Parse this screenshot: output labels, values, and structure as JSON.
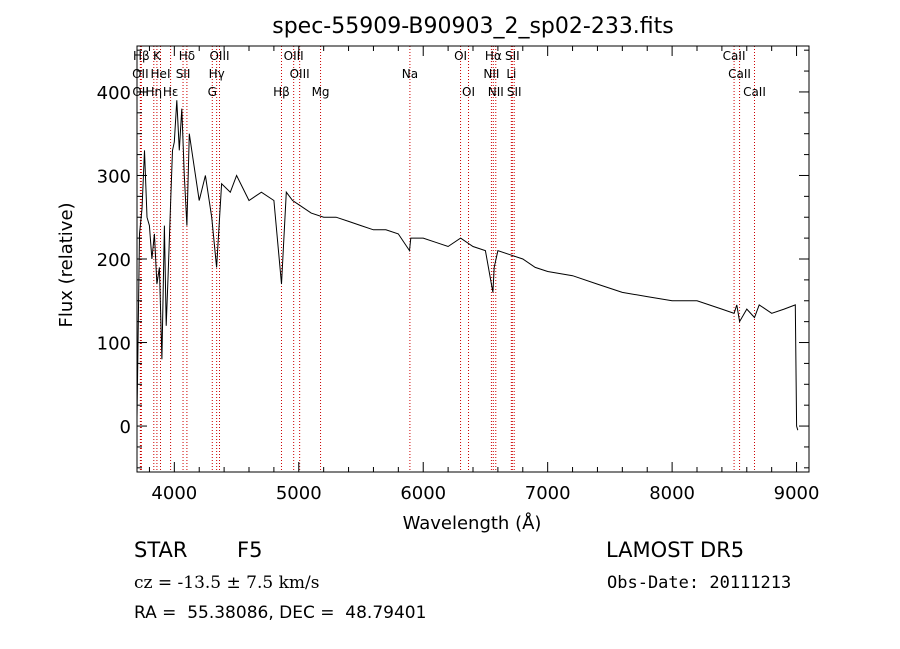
{
  "chart_data": {
    "type": "line",
    "title": "spec-55909-B90903_2_sp02-233.fits",
    "xlabel": "Wavelength (Å)",
    "ylabel": "Flux (relative)",
    "xlim": [
      3700,
      9100
    ],
    "ylim": [
      -55,
      455
    ],
    "xticks": [
      4000,
      5000,
      6000,
      7000,
      8000,
      9000
    ],
    "yticks": [
      0,
      100,
      200,
      300,
      400
    ],
    "grid": false,
    "series": [
      {
        "color": "#000000",
        "x": [
          3700,
          3720,
          3740,
          3760,
          3780,
          3800,
          3820,
          3840,
          3860,
          3880,
          3900,
          3920,
          3935,
          3950,
          3968,
          3985,
          4000,
          4020,
          4040,
          4060,
          4080,
          4101,
          4120,
          4150,
          4200,
          4250,
          4300,
          4340,
          4380,
          4450,
          4500,
          4600,
          4700,
          4800,
          4861,
          4900,
          4950,
          5000,
          5100,
          5200,
          5300,
          5400,
          5500,
          5600,
          5700,
          5800,
          5890,
          5900,
          6000,
          6100,
          6200,
          6300,
          6400,
          6500,
          6560,
          6570,
          6600,
          6700,
          6800,
          6900,
          7000,
          7200,
          7400,
          7600,
          7800,
          8000,
          8200,
          8400,
          8498,
          8520,
          8542,
          8600,
          8662,
          8700,
          8800,
          8900,
          8990,
          9000,
          9010
        ],
        "values": [
          10,
          230,
          260,
          330,
          250,
          240,
          200,
          230,
          170,
          190,
          80,
          240,
          120,
          180,
          260,
          330,
          340,
          390,
          330,
          380,
          300,
          240,
          350,
          320,
          270,
          300,
          250,
          190,
          290,
          280,
          300,
          270,
          280,
          270,
          170,
          280,
          270,
          265,
          255,
          250,
          250,
          245,
          240,
          235,
          235,
          230,
          210,
          225,
          225,
          220,
          215,
          225,
          215,
          210,
          160,
          190,
          210,
          205,
          200,
          190,
          185,
          180,
          170,
          160,
          155,
          150,
          150,
          140,
          135,
          145,
          125,
          140,
          130,
          145,
          135,
          140,
          145,
          0,
          -5
        ]
      }
    ],
    "lines": [
      {
        "label": "Hβ",
        "row": 0,
        "x": 3735
      },
      {
        "label": "K",
        "row": 0,
        "x": 3860
      },
      {
        "label": "Hδ",
        "row": 0,
        "x": 4101
      },
      {
        "label": "OIII",
        "row": 0,
        "x": 4363
      },
      {
        "label": "OIII",
        "row": 0,
        "x": 4959
      },
      {
        "label": "OI",
        "row": 0,
        "x": 6300
      },
      {
        "label": "Hα",
        "row": 0,
        "x": 6563
      },
      {
        "label": "SII",
        "row": 0,
        "x": 6716
      },
      {
        "label": "CaII",
        "row": 0,
        "x": 8498
      },
      {
        "label": "OII",
        "row": 1,
        "x": 3727
      },
      {
        "label": "HeI",
        "row": 1,
        "x": 3889
      },
      {
        "label": "SII",
        "row": 1,
        "x": 4070
      },
      {
        "label": "Hγ",
        "row": 1,
        "x": 4340
      },
      {
        "label": "OIII",
        "row": 1,
        "x": 5007
      },
      {
        "label": "Na",
        "row": 1,
        "x": 5893
      },
      {
        "label": "NII",
        "row": 1,
        "x": 6548
      },
      {
        "label": "Li",
        "row": 1,
        "x": 6708
      },
      {
        "label": "CaII",
        "row": 1,
        "x": 8542
      },
      {
        "label": "OII",
        "row": 2,
        "x": 3729
      },
      {
        "label": "Hη",
        "row": 2,
        "x": 3835
      },
      {
        "label": "Hε",
        "row": 2,
        "x": 3970
      },
      {
        "label": "G",
        "row": 2,
        "x": 4305
      },
      {
        "label": "Hβ",
        "row": 2,
        "x": 4861
      },
      {
        "label": "Mg",
        "row": 2,
        "x": 5175
      },
      {
        "label": "OI",
        "row": 2,
        "x": 6364
      },
      {
        "label": "NII",
        "row": 2,
        "x": 6583
      },
      {
        "label": "SII",
        "row": 2,
        "x": 6731
      },
      {
        "label": "CaII",
        "row": 2,
        "x": 8662
      }
    ],
    "line_color": "#cc0000"
  },
  "info": {
    "object_class": "STAR",
    "object_subclass": "F5",
    "survey": "LAMOST DR5",
    "redshift": "cz = -13.5 ± 7.5 km/s",
    "obs_date": "Obs-Date: 20111213",
    "coordinates": "RA =  55.38086, DEC =  48.79401"
  }
}
